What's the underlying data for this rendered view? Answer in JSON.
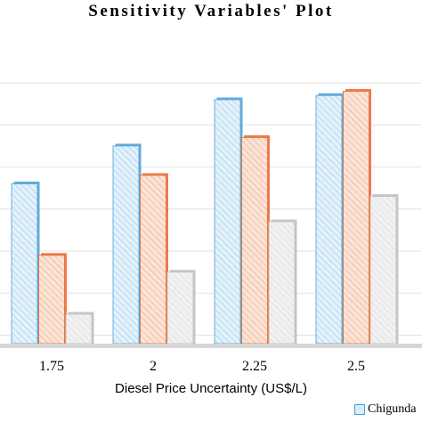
{
  "chart_data": {
    "type": "bar",
    "title": "Sensitivity Variables' Plot",
    "xlabel": "Diesel Price Uncertainty (US$/L)",
    "ylabel": "",
    "categories": [
      "1.75",
      "2",
      "2.25",
      "2.5"
    ],
    "series": [
      {
        "name": "Chigunda",
        "color": "#4a9fd6",
        "fill": "#e3f1fa",
        "values": [
          6.6,
          7.5,
          8.6,
          8.7
        ]
      },
      {
        "color": "#e8672f",
        "fill": "#fbe3d6",
        "values": [
          4.9,
          6.8,
          7.7,
          8.8
        ]
      },
      {
        "color": "#bdbdbd",
        "fill": "#f1f1f1",
        "values": [
          3.5,
          4.5,
          5.7,
          6.3
        ]
      }
    ],
    "ylim": [
      2.8,
      9.7
    ],
    "grid": true,
    "legend": "bottom-right"
  }
}
